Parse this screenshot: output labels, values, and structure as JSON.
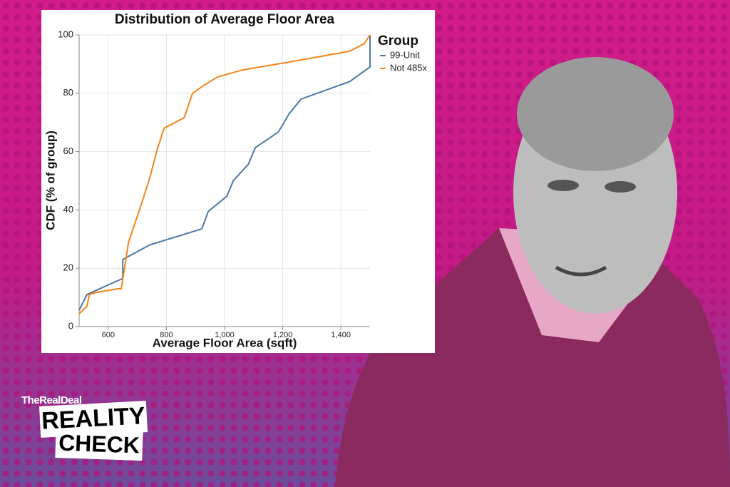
{
  "chart_data": {
    "type": "line",
    "title": "Distribution of Average Floor Area",
    "xlabel": "Average Floor Area (sqft)",
    "ylabel": "CDF (% of group)",
    "legend_title": "Group",
    "legend": "right",
    "grid": true,
    "xlim": [
      500,
      1500
    ],
    "xticks": [
      600,
      800,
      {
        "value": 1000,
        "label": "1,000"
      },
      {
        "value": 1200,
        "label": "1,200"
      },
      {
        "value": 1400,
        "label": "1,400"
      }
    ],
    "ylim": [
      0,
      100
    ],
    "yticks": [
      0,
      20,
      40,
      60,
      80,
      100
    ],
    "series": [
      {
        "name": "99-Unit",
        "color": "#4c78a8",
        "x": [
          500,
          527,
          650,
          650,
          743,
          922,
          944,
          1008,
          1030,
          1082,
          1106,
          1185,
          1222,
          1263,
          1430,
          1500,
          1500
        ],
        "values": [
          5.6,
          11,
          16.5,
          23,
          28,
          33.5,
          39.5,
          44.7,
          50,
          55.7,
          61.4,
          66.7,
          73,
          78,
          84,
          89,
          100
        ]
      },
      {
        "name": "Not 485x",
        "color": "#f58518",
        "x": [
          500,
          527,
          535,
          559,
          635,
          645,
          670,
          694,
          719,
          743,
          768,
          792,
          861,
          890,
          927,
          976,
          1062,
          1210,
          1430,
          1480,
          1500
        ],
        "values": [
          4.4,
          7,
          11,
          11.7,
          13,
          13,
          29,
          36,
          43.5,
          51,
          60.6,
          68,
          71.6,
          80,
          82.6,
          85.6,
          88,
          90.5,
          94.4,
          97,
          100
        ]
      }
    ]
  },
  "branding": {
    "brand": "TheRealDeal",
    "line1": "REALITY",
    "line2": "CHECK"
  }
}
